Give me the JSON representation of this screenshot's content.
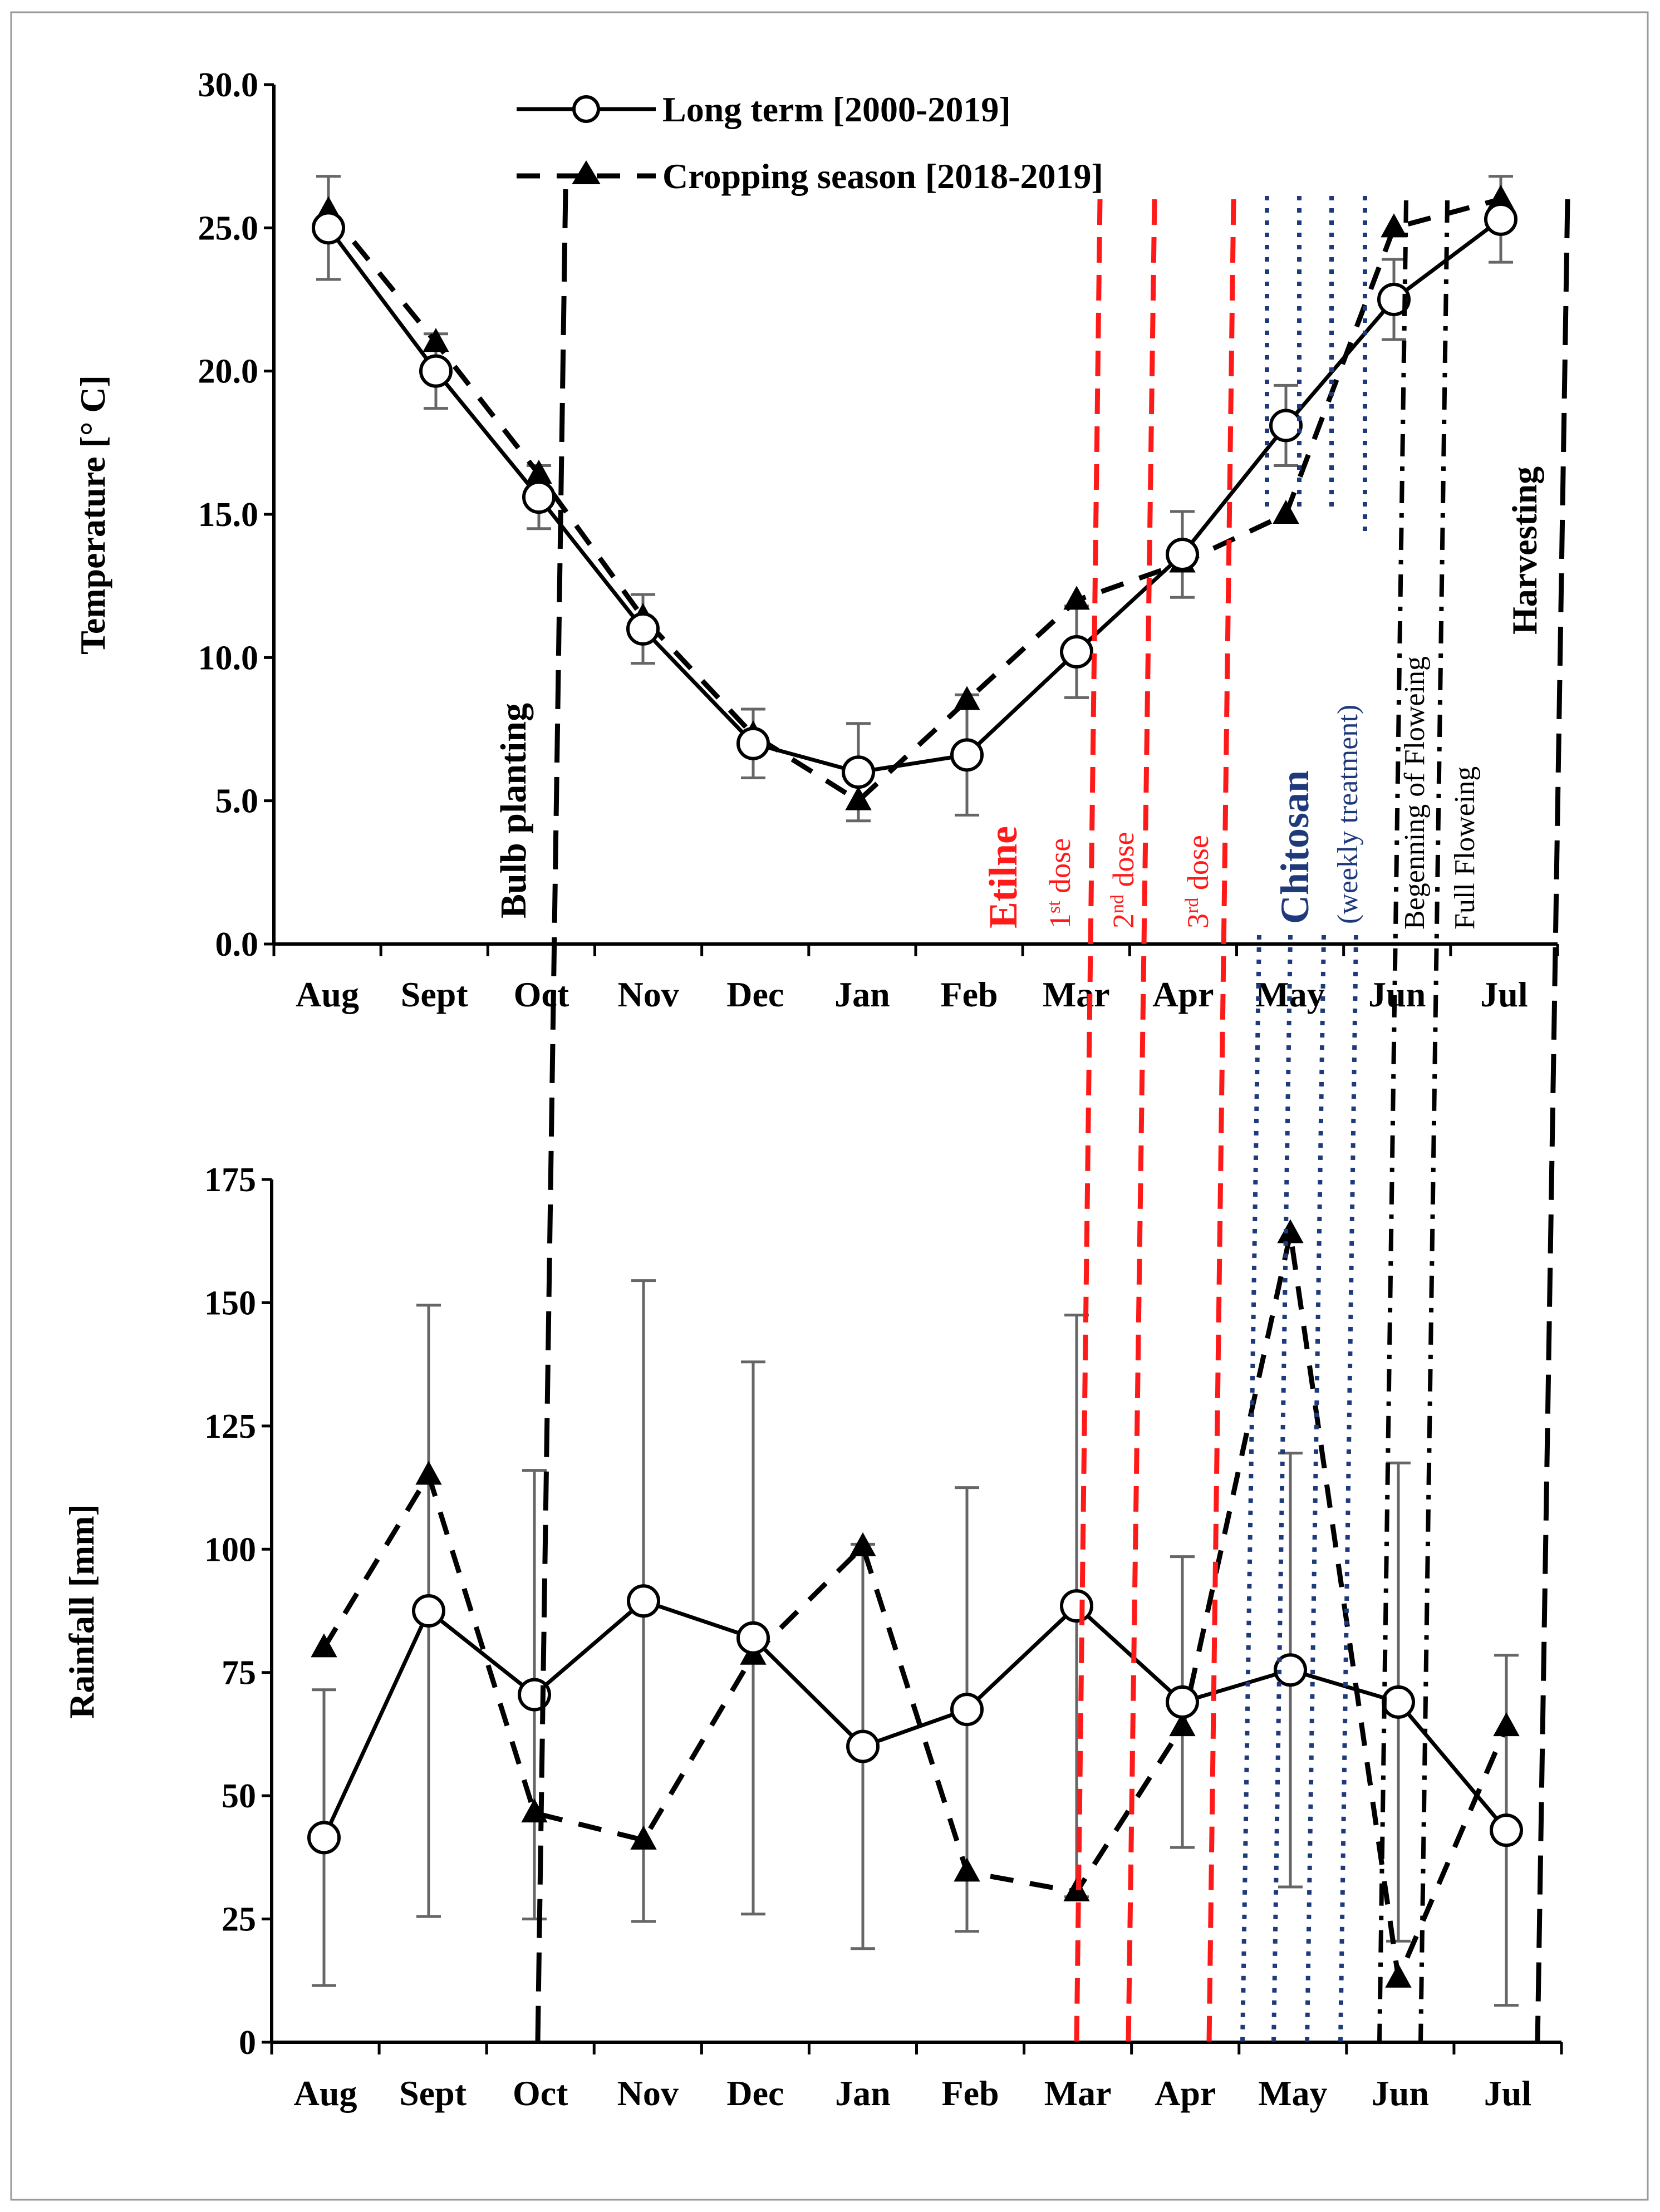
{
  "chart_data": [
    {
      "type": "line",
      "title": "",
      "xlabel": "",
      "ylabel": "Temperature [° C]",
      "ylim": [
        0,
        30
      ],
      "yticks": [
        "0.0",
        "5.0",
        "10.0",
        "15.0",
        "20.0",
        "25.0",
        "30.0"
      ],
      "categories": [
        "Aug",
        "Sept",
        "Oct",
        "Nov",
        "Dec",
        "Jan",
        "Feb",
        "Mar",
        "Apr",
        "May",
        "Jun",
        "Jul"
      ],
      "legend": {
        "position": "top-center",
        "entries": [
          "Long term [2000-2019]",
          "Cropping season [2018-2019]"
        ]
      },
      "series": [
        {
          "name": "Long term [2000-2019]",
          "marker": "open-circle",
          "line": "solid",
          "values": [
            25.0,
            20.0,
            15.6,
            11.0,
            7.0,
            6.0,
            6.6,
            10.2,
            13.6,
            18.1,
            22.5,
            25.3
          ],
          "error": [
            1.8,
            1.3,
            1.1,
            1.2,
            1.2,
            1.7,
            2.1,
            1.6,
            1.5,
            1.4,
            1.4,
            1.5
          ]
        },
        {
          "name": "Cropping season [2018-2019]",
          "marker": "filled-triangle",
          "line": "dashed",
          "values": [
            25.6,
            21.0,
            16.4,
            11.4,
            7.3,
            5.0,
            8.5,
            12.0,
            13.3,
            15.0,
            25.0,
            26.0
          ]
        }
      ]
    },
    {
      "type": "line",
      "title": "",
      "xlabel": "",
      "ylabel": "Rainfall [mm]",
      "ylim": [
        0,
        175
      ],
      "yticks": [
        "0",
        "25",
        "50",
        "75",
        "100",
        "125",
        "150",
        "175"
      ],
      "categories": [
        "Aug",
        "Sept",
        "Oct",
        "Nov",
        "Dec",
        "Jan",
        "Feb",
        "Mar",
        "Apr",
        "May",
        "Jun",
        "Jul"
      ],
      "series": [
        {
          "name": "Long term [2000-2019]",
          "marker": "open-circle",
          "line": "solid",
          "values": [
            41.5,
            87.5,
            70.5,
            89.5,
            82.0,
            60.0,
            67.5,
            88.5,
            69.0,
            75.5,
            69.0,
            43.0
          ],
          "error": [
            30.0,
            62.0,
            45.5,
            65.0,
            56.0,
            41.0,
            45.0,
            59.0,
            29.5,
            44.0,
            48.5,
            35.5
          ]
        },
        {
          "name": "Cropping season [2018-2019]",
          "marker": "filled-triangle",
          "line": "dashed",
          "values": [
            80.0,
            115.0,
            46.5,
            41.0,
            78.5,
            100.5,
            34.5,
            30.5,
            64.0,
            164.0,
            13.0,
            64.0
          ]
        }
      ]
    }
  ],
  "annotations": {
    "bulb_planting": "Bulb planting",
    "etilne": "Etilne",
    "dose1_num": "1",
    "dose1_sup": "st",
    "dose1_word": "dose",
    "dose2_num": "2",
    "dose2_sup": "nd",
    "dose2_word": "dose",
    "dose3_num": "3",
    "dose3_sup": "rd",
    "dose3_word": "dose",
    "chitosan": "Chitosan",
    "weekly": "(weekly treatment)",
    "beginning_flowering": "Begenning of Floweing",
    "full_flowering": "Full Floweing",
    "harvesting": "Harvesting"
  },
  "colors": {
    "ethylene": "#ff1a1a",
    "chitosan": "#1f3a7a",
    "frame": "#9a9a9a",
    "error_bar": "#666666",
    "text": "#000000"
  }
}
